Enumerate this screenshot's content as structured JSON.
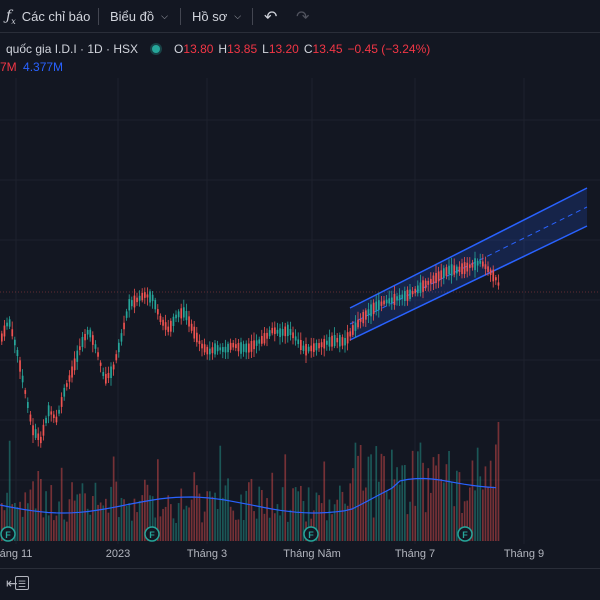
{
  "toolbar": {
    "indicators_label": "Các chỉ báo",
    "chart_type_label": "Biểu đồ",
    "profile_label": "Hồ sơ"
  },
  "legend": {
    "symbol_title": "quốc gia I.D.I · 1D · HSX",
    "open_label": "O",
    "open_value": "13.80",
    "high_label": "H",
    "high_value": "13.85",
    "low_label": "L",
    "low_value": "13.20",
    "close_label": "C",
    "close_value": "13.45",
    "change": "−0.45 (−3.24%)",
    "volume_partial": "7M",
    "volume_ma": "4.377M"
  },
  "time_axis": [
    "áng 11",
    "2023",
    "Tháng 3",
    "Tháng Năm",
    "Tháng 7",
    "Tháng 9"
  ],
  "event_marker": "F",
  "colors": {
    "up": "#26a69a",
    "down": "#ef5350",
    "channel": "#2962ff",
    "background": "#131722"
  }
}
